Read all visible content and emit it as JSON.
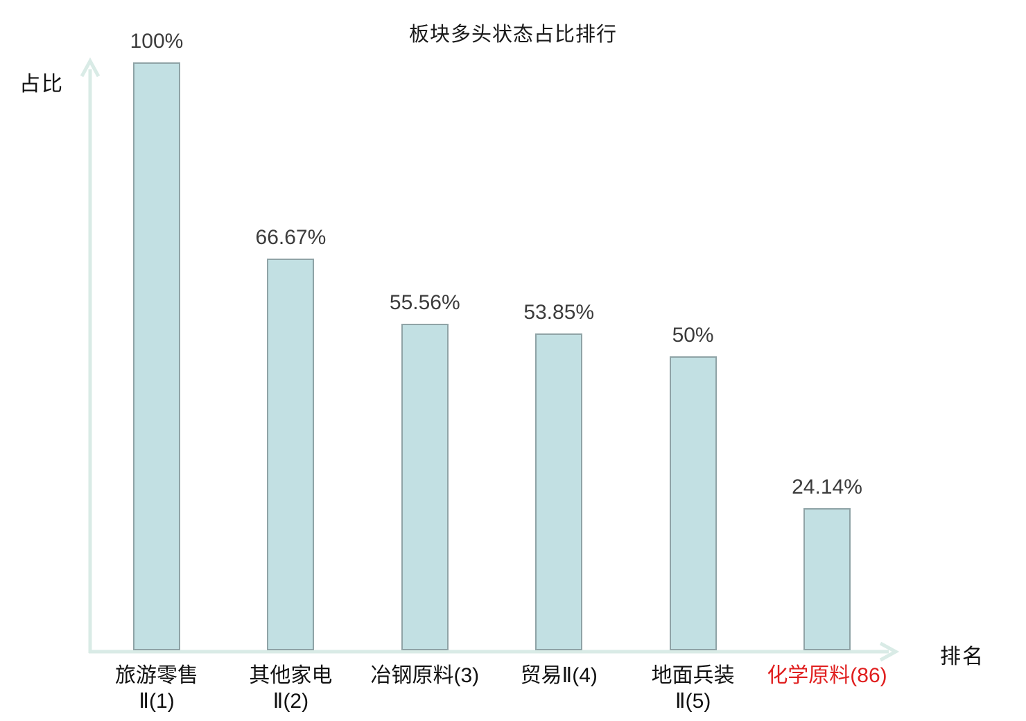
{
  "title": "板块多头状态占比排行",
  "axes": {
    "y_label": "占比",
    "x_label": "排名"
  },
  "chart_data": {
    "type": "bar",
    "title": "板块多头状态占比排行",
    "xlabel": "排名",
    "ylabel": "占比",
    "categories": [
      "旅游零售Ⅱ(1)",
      "其他家电Ⅱ(2)",
      "冶钢原料(3)",
      "贸易Ⅱ(4)",
      "地面兵装Ⅱ(5)",
      "化学原料(86)"
    ],
    "category_lines": [
      [
        "旅游零售",
        "Ⅱ(1)"
      ],
      [
        "其他家电",
        "Ⅱ(2)"
      ],
      [
        "冶钢原料(3)"
      ],
      [
        "贸易Ⅱ(4)"
      ],
      [
        "地面兵装",
        "Ⅱ(5)"
      ],
      [
        "化学原料(86)"
      ]
    ],
    "values": [
      100,
      66.67,
      55.56,
      53.85,
      50,
      24.14
    ],
    "value_labels": [
      "100%",
      "66.67%",
      "55.56%",
      "53.85%",
      "50%",
      "24.14%"
    ],
    "ylim": [
      0,
      100
    ],
    "grid": false,
    "legend": "none",
    "highlight_index": 5,
    "colors": {
      "bar_fill": "#c2e0e3",
      "bar_border": "#8fa3a6",
      "axis": "#d9ebe6",
      "value_label": "#3c3c3c",
      "category_label": "#111111",
      "highlight_label": "#e01f1f"
    }
  }
}
